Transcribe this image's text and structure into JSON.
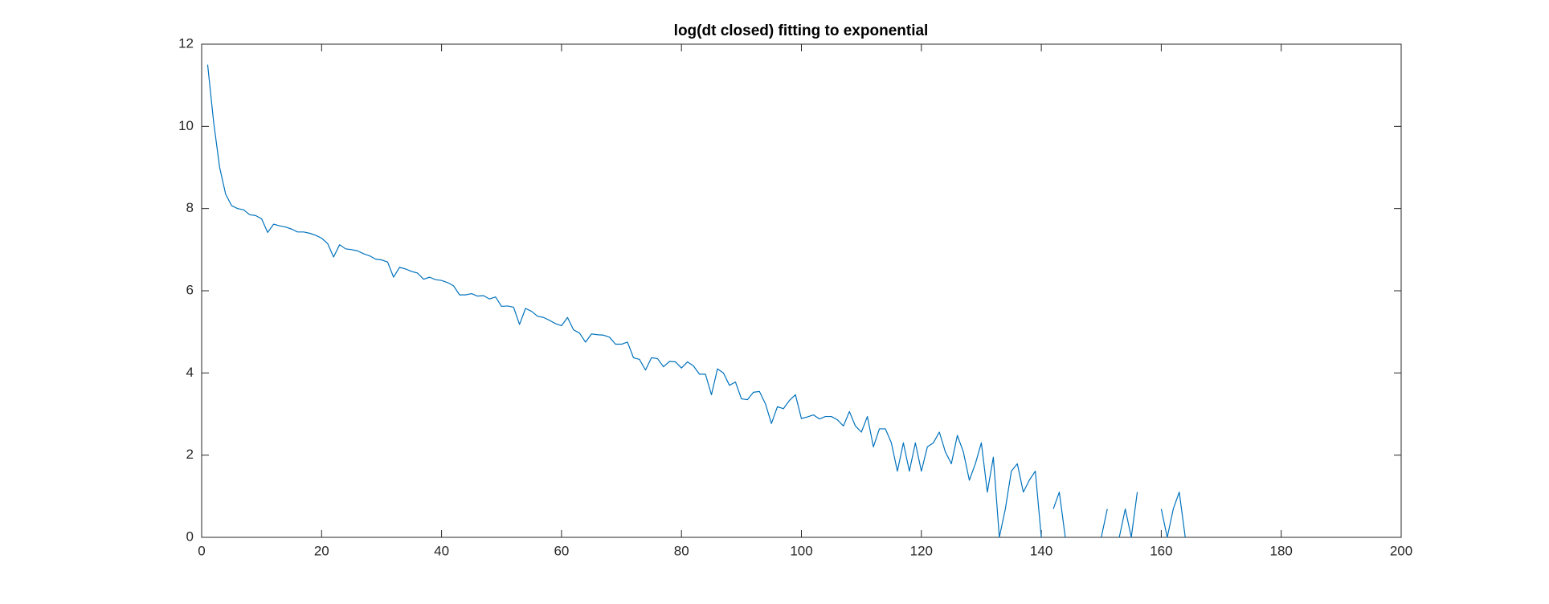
{
  "chart_data": {
    "type": "line",
    "title": "log(dt closed) fitting to exponential",
    "x": [
      1,
      2,
      3,
      4,
      5,
      6,
      7,
      8,
      9,
      10,
      11,
      12,
      13,
      14,
      15,
      16,
      17,
      18,
      19,
      20,
      21,
      22,
      23,
      24,
      25,
      26,
      27,
      28,
      29,
      30,
      31,
      32,
      33,
      34,
      35,
      36,
      37,
      38,
      39,
      40,
      41,
      42,
      43,
      44,
      45,
      46,
      47,
      48,
      49,
      50,
      51,
      52,
      53,
      54,
      55,
      56,
      57,
      58,
      59,
      60,
      61,
      62,
      63,
      64,
      65,
      66,
      67,
      68,
      69,
      70,
      71,
      72,
      73,
      74,
      75,
      76,
      77,
      78,
      79,
      80,
      81,
      82,
      83,
      84,
      85,
      86,
      87,
      88,
      89,
      90,
      91,
      92,
      93,
      94,
      95,
      96,
      97,
      98,
      99,
      100,
      101,
      102,
      103,
      104,
      105,
      106,
      107,
      108,
      109,
      110,
      111,
      112,
      113,
      114,
      115,
      116,
      117,
      118,
      119,
      120,
      121,
      122,
      123,
      124,
      125,
      126,
      127,
      128,
      129,
      130,
      131,
      132,
      133,
      134,
      135,
      136,
      137,
      138,
      139,
      140,
      141,
      142,
      143,
      144,
      145,
      146,
      147,
      148,
      149,
      150,
      151,
      152,
      153,
      154,
      155,
      156,
      157,
      158,
      159,
      160,
      161,
      162,
      163,
      164
    ],
    "series": [
      {
        "color": "#0072bd",
        "values": [
          11.5,
          10.1,
          9.0,
          8.35,
          8.07,
          8.0,
          7.97,
          7.85,
          7.83,
          7.75,
          7.42,
          7.62,
          7.58,
          7.55,
          7.5,
          7.43,
          7.43,
          7.4,
          7.35,
          7.28,
          7.15,
          6.82,
          7.12,
          7.02,
          7.0,
          6.97,
          6.9,
          6.85,
          6.77,
          6.75,
          6.7,
          6.33,
          6.57,
          6.53,
          6.47,
          6.43,
          6.28,
          6.33,
          6.27,
          6.25,
          6.2,
          6.12,
          5.9,
          5.9,
          5.93,
          5.87,
          5.88,
          5.8,
          5.85,
          5.62,
          5.63,
          5.6,
          5.18,
          5.57,
          5.5,
          5.38,
          5.35,
          5.28,
          5.2,
          5.15,
          5.35,
          5.05,
          4.97,
          4.75,
          4.95,
          4.93,
          4.92,
          4.87,
          4.7,
          4.7,
          4.75,
          4.37,
          4.33,
          4.07,
          4.37,
          4.35,
          4.15,
          4.28,
          4.27,
          4.12,
          4.27,
          4.17,
          3.97,
          3.97,
          3.47,
          4.1,
          4.0,
          3.7,
          3.78,
          3.37,
          3.35,
          3.53,
          3.55,
          3.25,
          2.77,
          3.18,
          3.13,
          3.33,
          3.47,
          2.89,
          2.93,
          2.98,
          2.88,
          2.94,
          2.94,
          2.86,
          2.71,
          3.06,
          2.71,
          2.56,
          2.94,
          2.2,
          2.64,
          2.64,
          2.3,
          1.61,
          2.3,
          1.61,
          2.3,
          1.61,
          2.2,
          2.3,
          2.56,
          2.08,
          1.79,
          2.48,
          2.08,
          1.39,
          1.79,
          2.3,
          1.1,
          1.95,
          0,
          0.69,
          1.61,
          1.79,
          1.1,
          1.39,
          1.61,
          0,
          null,
          0.69,
          1.1,
          0,
          null,
          null,
          null,
          null,
          null,
          0,
          0.69,
          null,
          0,
          0.69,
          0,
          1.1,
          null,
          null,
          null,
          0.69,
          0,
          0.69,
          1.1,
          0
        ]
      }
    ],
    "xlim": [
      0,
      200
    ],
    "xticks": [
      0,
      20,
      40,
      60,
      80,
      100,
      120,
      140,
      160,
      180,
      200
    ],
    "ylim": [
      0,
      12
    ],
    "yticks": [
      0,
      2,
      4,
      6,
      8,
      10,
      12
    ]
  }
}
